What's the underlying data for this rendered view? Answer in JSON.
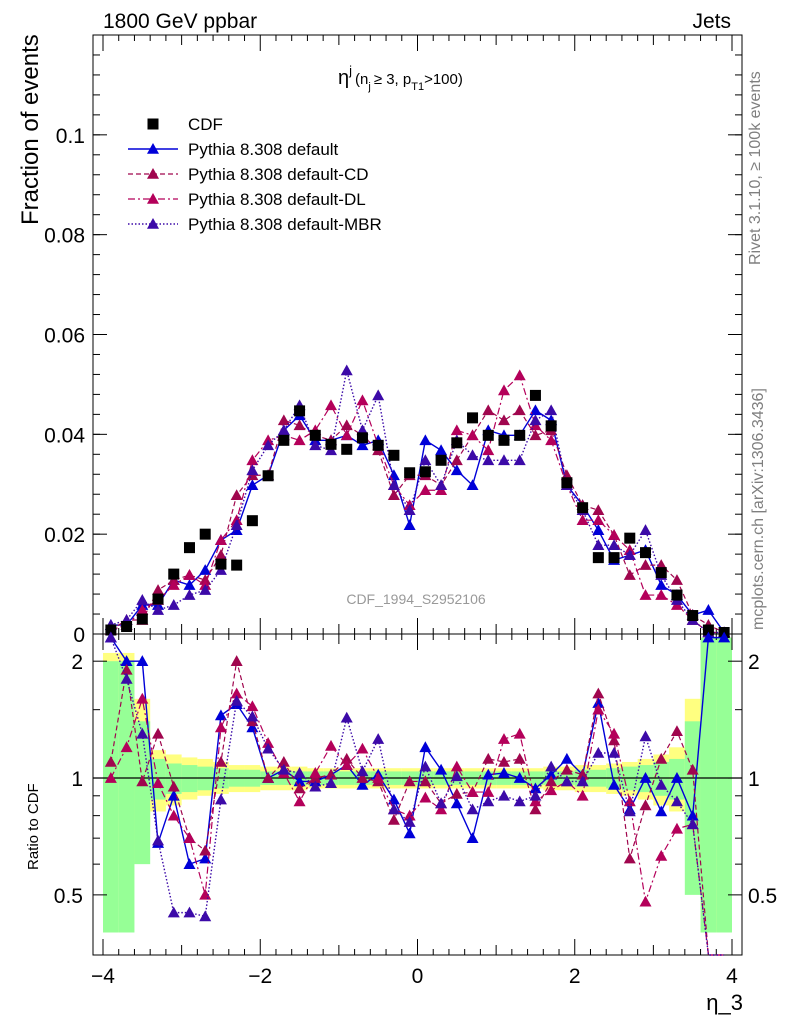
{
  "header": {
    "left": "1800 GeV ppbar",
    "right": "Jets"
  },
  "side": {
    "rivet": "Rivet 3.1.10, ≥ 100k events",
    "mcplots": "mcplots.cern.ch [arXiv:1306.3436]"
  },
  "watermark": "CDF_1994_S2952106",
  "title": {
    "base": "η",
    "sup": "j",
    "inner": "(n",
    "sub1": "j",
    "mid": "≥ 3, p",
    "sub2": "T1",
    "end": ">100)"
  },
  "colors": {
    "cdf": "#000000",
    "default": "#0000d8",
    "cd": "#a0064e",
    "dl": "#b4005a",
    "mbr": "#3c0aa8",
    "band_yellow": "#ffff80",
    "band_green": "#96ff96"
  },
  "chart_data": [
    {
      "type": "scatter",
      "ylabel": "Fraction of events",
      "xlabel": "",
      "xlim": [
        -4,
        4
      ],
      "ylim": [
        0,
        0.12
      ],
      "yticks": [
        0,
        0.02,
        0.04,
        0.06,
        0.08,
        0.1
      ],
      "ytick_labels": [
        "0",
        "0.02",
        "0.04",
        "0.06",
        "0.08",
        "0.1"
      ],
      "legend": [
        "CDF",
        "Pythia 8.308 default",
        "Pythia 8.308 default-CD",
        "Pythia 8.308 default-DL",
        "Pythia 8.308 default-MBR"
      ],
      "legend_position": "top-left",
      "x": [
        -3.9,
        -3.7,
        -3.5,
        -3.3,
        -3.1,
        -2.9,
        -2.7,
        -2.5,
        -2.3,
        -2.1,
        -1.9,
        -1.7,
        -1.5,
        -1.3,
        -1.1,
        -0.9,
        -0.7,
        -0.5,
        -0.3,
        -0.1,
        0.1,
        0.3,
        0.5,
        0.7,
        0.9,
        1.1,
        1.3,
        1.5,
        1.7,
        1.9,
        2.1,
        2.3,
        2.5,
        2.7,
        2.9,
        3.1,
        3.3,
        3.5,
        3.7,
        3.9
      ],
      "series": [
        {
          "name": "CDF",
          "values": [
            0.0008,
            0.0015,
            0.003,
            0.007,
            0.012,
            0.0173,
            0.02,
            0.014,
            0.0138,
            0.0227,
            0.0317,
            0.0388,
            0.0447,
            0.0398,
            0.038,
            0.037,
            0.0393,
            0.0378,
            0.0358,
            0.0323,
            0.0325,
            0.0348,
            0.0383,
            0.0433,
            0.0398,
            0.0388,
            0.0398,
            0.0478,
            0.0417,
            0.0303,
            0.0253,
            0.0153,
            0.0153,
            0.0192,
            0.0163,
            0.0123,
            0.0078,
            0.0037,
            0.0008,
            0.0003
          ]
        },
        {
          "name": "Pythia 8.308 default",
          "values": [
            0.0018,
            0.0018,
            0.0058,
            0.0058,
            0.0108,
            0.0098,
            0.0128,
            0.0188,
            0.0208,
            0.0298,
            0.0318,
            0.0408,
            0.0438,
            0.0388,
            0.0388,
            0.0398,
            0.0378,
            0.0388,
            0.0318,
            0.0218,
            0.0388,
            0.0368,
            0.0328,
            0.0298,
            0.0408,
            0.0398,
            0.0398,
            0.0448,
            0.0428,
            0.0298,
            0.0258,
            0.0208,
            0.0148,
            0.0158,
            0.0168,
            0.0098,
            0.0078,
            0.0038,
            0.0048,
            0.0003
          ]
        },
        {
          "name": "Pythia 8.308 default-CD",
          "values": [
            0.0008,
            0.0028,
            0.0028,
            0.0088,
            0.0108,
            0.0118,
            0.0108,
            0.0158,
            0.0278,
            0.0318,
            0.0318,
            0.0428,
            0.0418,
            0.0398,
            0.0388,
            0.0418,
            0.0398,
            0.0368,
            0.0278,
            0.0318,
            0.0318,
            0.0298,
            0.0348,
            0.0398,
            0.0448,
            0.0428,
            0.0448,
            0.0398,
            0.0408,
            0.0318,
            0.0258,
            0.0248,
            0.0198,
            0.0118,
            0.0138,
            0.0138,
            0.0108,
            0.0038,
            0.0018,
            0.0003
          ]
        },
        {
          "name": "Pythia 8.308 default-DL",
          "values": [
            0.0008,
            0.0018,
            0.0048,
            0.0068,
            0.0098,
            0.0118,
            0.0098,
            0.0188,
            0.0228,
            0.0348,
            0.0388,
            0.0398,
            0.0388,
            0.0408,
            0.0458,
            0.0398,
            0.0468,
            0.0378,
            0.0298,
            0.0258,
            0.0288,
            0.0288,
            0.0408,
            0.0398,
            0.0368,
            0.0488,
            0.0518,
            0.0418,
            0.0388,
            0.0298,
            0.0228,
            0.0228,
            0.0198,
            0.0168,
            0.0078,
            0.0078,
            0.0058,
            0.0028,
            0.0003,
            0.0003
          ]
        },
        {
          "name": "Pythia 8.308 default-MBR",
          "values": [
            0.0018,
            0.0028,
            0.0068,
            0.0048,
            0.0058,
            0.0078,
            0.0088,
            0.0128,
            0.0218,
            0.0328,
            0.0378,
            0.0408,
            0.0458,
            0.0378,
            0.0368,
            0.0528,
            0.0408,
            0.0478,
            0.0298,
            0.0248,
            0.0348,
            0.0298,
            0.0388,
            0.0358,
            0.0348,
            0.0348,
            0.0348,
            0.0428,
            0.0448,
            0.0298,
            0.0248,
            0.0178,
            0.0178,
            0.0158,
            0.0208,
            0.0118,
            0.0068,
            0.0028,
            0.0003,
            0.0003
          ]
        }
      ]
    },
    {
      "type": "scatter",
      "ylabel": "Ratio to CDF",
      "xlabel": "η_3",
      "xlim": [
        -4,
        4
      ],
      "ylim": [
        0.35,
        2.35
      ],
      "yticks": [
        0.5,
        1,
        2
      ],
      "ytick_labels": [
        "0.5",
        "1",
        "2"
      ],
      "xticks": [
        -4,
        -2,
        0,
        2,
        4
      ],
      "xtick_labels": [
        "−4",
        "−2",
        "0",
        "2",
        "4"
      ],
      "reference_line": 1,
      "x": [
        -3.9,
        -3.7,
        -3.5,
        -3.3,
        -3.1,
        -2.9,
        -2.7,
        -2.5,
        -2.3,
        -2.1,
        -1.9,
        -1.7,
        -1.5,
        -1.3,
        -1.1,
        -0.9,
        -0.7,
        -0.5,
        -0.3,
        -0.1,
        0.1,
        0.3,
        0.5,
        0.7,
        0.9,
        1.1,
        1.3,
        1.5,
        1.7,
        1.9,
        2.1,
        2.3,
        2.5,
        2.7,
        2.9,
        3.1,
        3.3,
        3.5,
        3.7,
        3.9
      ],
      "bands": {
        "yellow": [
          [
            0.4,
            2.1
          ],
          [
            0.6,
            2.1
          ],
          [
            0.75,
            1.6
          ],
          [
            0.82,
            1.18
          ],
          [
            0.85,
            1.15
          ],
          [
            0.88,
            1.13
          ],
          [
            0.9,
            1.12
          ],
          [
            0.91,
            1.1
          ],
          [
            0.92,
            1.08
          ],
          [
            0.92,
            1.08
          ],
          [
            0.93,
            1.07
          ],
          [
            0.93,
            1.07
          ],
          [
            0.93,
            1.07
          ],
          [
            0.94,
            1.06
          ],
          [
            0.94,
            1.06
          ],
          [
            0.94,
            1.06
          ],
          [
            0.94,
            1.06
          ],
          [
            0.94,
            1.06
          ],
          [
            0.94,
            1.06
          ],
          [
            0.94,
            1.06
          ],
          [
            0.94,
            1.06
          ],
          [
            0.94,
            1.06
          ],
          [
            0.94,
            1.06
          ],
          [
            0.94,
            1.06
          ],
          [
            0.94,
            1.06
          ],
          [
            0.94,
            1.06
          ],
          [
            0.94,
            1.06
          ],
          [
            0.94,
            1.06
          ],
          [
            0.93,
            1.07
          ],
          [
            0.93,
            1.07
          ],
          [
            0.92,
            1.08
          ],
          [
            0.92,
            1.08
          ],
          [
            0.91,
            1.09
          ],
          [
            0.9,
            1.1
          ],
          [
            0.88,
            1.12
          ],
          [
            0.85,
            1.15
          ],
          [
            0.82,
            1.2
          ],
          [
            0.7,
            1.6
          ],
          [
            0.4,
            2.3
          ],
          [
            0.4,
            2.3
          ]
        ],
        "green": [
          [
            0.4,
            2.0
          ],
          [
            0.4,
            2.0
          ],
          [
            0.6,
            1.4
          ],
          [
            0.88,
            1.12
          ],
          [
            0.91,
            1.09
          ],
          [
            0.92,
            1.08
          ],
          [
            0.93,
            1.07
          ],
          [
            0.94,
            1.06
          ],
          [
            0.95,
            1.05
          ],
          [
            0.95,
            1.05
          ],
          [
            0.96,
            1.04
          ],
          [
            0.96,
            1.04
          ],
          [
            0.96,
            1.04
          ],
          [
            0.96,
            1.04
          ],
          [
            0.96,
            1.04
          ],
          [
            0.96,
            1.04
          ],
          [
            0.96,
            1.04
          ],
          [
            0.96,
            1.04
          ],
          [
            0.96,
            1.04
          ],
          [
            0.96,
            1.04
          ],
          [
            0.96,
            1.04
          ],
          [
            0.96,
            1.04
          ],
          [
            0.96,
            1.04
          ],
          [
            0.96,
            1.04
          ],
          [
            0.96,
            1.04
          ],
          [
            0.96,
            1.04
          ],
          [
            0.96,
            1.04
          ],
          [
            0.96,
            1.04
          ],
          [
            0.96,
            1.04
          ],
          [
            0.96,
            1.04
          ],
          [
            0.95,
            1.05
          ],
          [
            0.95,
            1.05
          ],
          [
            0.94,
            1.06
          ],
          [
            0.93,
            1.07
          ],
          [
            0.92,
            1.08
          ],
          [
            0.9,
            1.1
          ],
          [
            0.88,
            1.12
          ],
          [
            0.5,
            1.4
          ],
          [
            0.4,
            2.3
          ],
          [
            0.4,
            2.3
          ]
        ]
      },
      "series": [
        {
          "name": "Pythia 8.308 default",
          "values": [
            2.3,
            2.0,
            2.0,
            0.68,
            0.9,
            0.6,
            0.62,
            1.45,
            1.55,
            1.35,
            1.0,
            1.05,
            0.98,
            0.98,
            1.02,
            1.08,
            0.96,
            1.02,
            0.88,
            0.72,
            1.2,
            1.05,
            0.86,
            0.7,
            1.02,
            1.03,
            1.0,
            0.94,
            1.02,
            1.12,
            1.02,
            1.56,
            0.96,
            0.83,
            1.0,
            0.82,
            1.0,
            0.8,
            2.3,
            2.3
          ]
        },
        {
          "name": "Pythia 8.308 default-CD",
          "values": [
            1.1,
            1.9,
            0.98,
            1.3,
            0.95,
            0.7,
            0.65,
            1.1,
            2.0,
            1.4,
            1.0,
            1.1,
            0.94,
            1.0,
            1.02,
            1.12,
            1.0,
            0.98,
            0.78,
            0.98,
            0.98,
            0.86,
            0.91,
            0.92,
            1.12,
            1.1,
            1.12,
            0.83,
            0.98,
            1.05,
            1.02,
            1.65,
            1.25,
            0.62,
            0.85,
            1.12,
            1.32,
            1.05,
            0.3,
            0.3
          ]
        },
        {
          "name": "Pythia 8.308 default-DL",
          "values": [
            1.0,
            1.2,
            1.6,
            0.97,
            0.8,
            0.7,
            0.5,
            1.35,
            1.65,
            1.53,
            1.23,
            1.03,
            0.87,
            1.03,
            1.21,
            1.08,
            1.19,
            1.0,
            0.83,
            0.8,
            0.89,
            0.83,
            1.07,
            0.92,
            0.92,
            1.26,
            1.3,
            0.87,
            0.93,
            0.98,
            0.9,
            1.5,
            1.3,
            0.87,
            0.48,
            0.63,
            0.74,
            0.76,
            0.3,
            0.3
          ]
        },
        {
          "name": "Pythia 8.308 default-MBR",
          "values": [
            2.3,
            1.8,
            1.3,
            0.69,
            0.45,
            0.45,
            0.44,
            0.88,
            1.58,
            1.44,
            1.19,
            1.05,
            1.03,
            0.95,
            0.97,
            1.43,
            1.04,
            1.26,
            0.83,
            0.77,
            1.07,
            0.86,
            1.01,
            0.83,
            0.87,
            0.9,
            0.87,
            0.9,
            1.07,
            0.98,
            0.98,
            1.16,
            1.16,
            0.82,
            1.28,
            0.96,
            0.87,
            0.76,
            0.3,
            0.3
          ]
        }
      ]
    }
  ]
}
